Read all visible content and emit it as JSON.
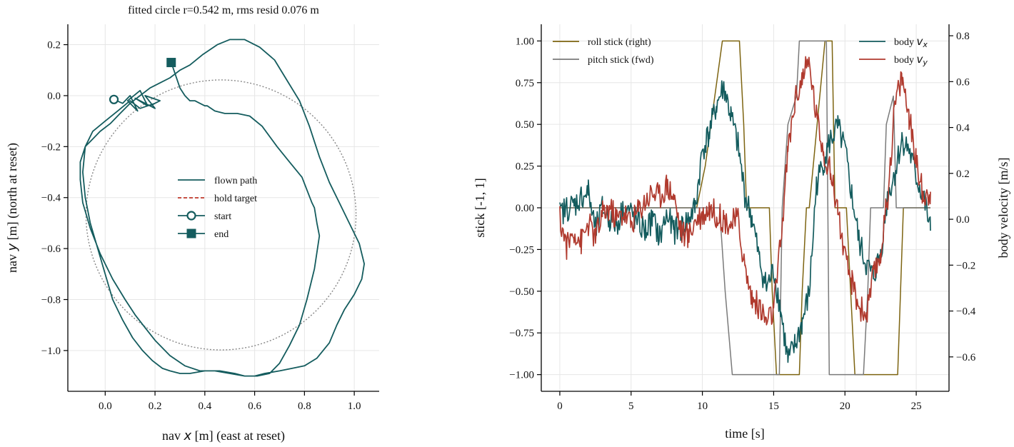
{
  "chart_data": [
    {
      "type": "line",
      "title": "fitted circle r=0.542 m, rms resid 0.076 m",
      "xlabel_parts": [
        "nav ",
        "x",
        " [m]  (east at reset)"
      ],
      "ylabel_parts": [
        "nav ",
        "y",
        " [m]  (north at reset)"
      ],
      "xlim": [
        -0.15,
        1.1
      ],
      "ylim": [
        -1.16,
        0.28
      ],
      "xticks": [
        0.0,
        0.2,
        0.4,
        0.6,
        0.8,
        1.0
      ],
      "xtick_labels": [
        "0.0",
        "0.2",
        "0.4",
        "0.6",
        "0.8",
        "1.0"
      ],
      "yticks": [
        0.2,
        0.0,
        -0.2,
        -0.4,
        -0.6,
        -0.8,
        -1.0
      ],
      "ytick_labels": [
        "0.2",
        "0.0",
        "−0.2",
        "−0.4",
        "−0.6",
        "−0.8",
        "−1.0"
      ],
      "grid": true,
      "legend_position": "center",
      "legend": [
        {
          "label": "flown path",
          "style": "solid",
          "color": "#145c5e"
        },
        {
          "label": "hold target",
          "style": "dashed",
          "color": "#c0392b"
        },
        {
          "label": "start",
          "style": "marker-open-circle",
          "color": "#145c5e"
        },
        {
          "label": "end",
          "style": "marker-square",
          "color": "#145c5e"
        }
      ],
      "fitted_circle": {
        "center_x": 0.465,
        "center_y": -0.468,
        "radius": 0.542,
        "color": "#888888"
      },
      "start_point": {
        "x": 0.035,
        "y": -0.015
      },
      "end_point": {
        "x": 0.265,
        "y": 0.13
      },
      "path": {
        "x": [
          0.035,
          0.07,
          0.1,
          0.13,
          0.09,
          0.14,
          0.17,
          0.12,
          0.2,
          0.16,
          0.22,
          0.18,
          0.2,
          0.14,
          0.1,
          0.05,
          0.0,
          -0.05,
          -0.08,
          -0.09,
          -0.08,
          -0.06,
          -0.03,
          0.0,
          0.03,
          0.07,
          0.11,
          0.15,
          0.19,
          0.23,
          0.26,
          0.3,
          0.34,
          0.4,
          0.46,
          0.52,
          0.56,
          0.6,
          0.64,
          0.7,
          0.75,
          0.8,
          0.85,
          0.9,
          0.93,
          0.96,
          1.0,
          1.03,
          1.04,
          1.02,
          0.98,
          0.94,
          0.9,
          0.86,
          0.82,
          0.78,
          0.73,
          0.68,
          0.62,
          0.56,
          0.5,
          0.45,
          0.39,
          0.34,
          0.3,
          0.26,
          0.22,
          0.18,
          0.14,
          0.1,
          0.06,
          0.02,
          -0.02,
          -0.05,
          -0.08,
          -0.1,
          -0.1,
          -0.09,
          -0.06,
          -0.02,
          0.03,
          0.08,
          0.12,
          0.16,
          0.2,
          0.26,
          0.32,
          0.38,
          0.44,
          0.5,
          0.56,
          0.61,
          0.66,
          0.7,
          0.74,
          0.78,
          0.81,
          0.84,
          0.86,
          0.85,
          0.84,
          0.83,
          0.79,
          0.74,
          0.69,
          0.63,
          0.58,
          0.53,
          0.48,
          0.44,
          0.41,
          0.4,
          0.38,
          0.36,
          0.34,
          0.32,
          0.3,
          0.265
        ],
        "y": [
          -0.015,
          -0.03,
          0.0,
          -0.06,
          -0.02,
          0.02,
          -0.04,
          -0.01,
          -0.05,
          0.0,
          -0.02,
          -0.04,
          -0.03,
          -0.05,
          -0.02,
          -0.06,
          -0.1,
          -0.14,
          -0.2,
          -0.3,
          -0.4,
          -0.5,
          -0.6,
          -0.7,
          -0.8,
          -0.88,
          -0.95,
          -1.0,
          -1.04,
          -1.07,
          -1.08,
          -1.09,
          -1.09,
          -1.08,
          -1.08,
          -1.09,
          -1.1,
          -1.1,
          -1.09,
          -1.08,
          -1.07,
          -1.06,
          -1.03,
          -0.97,
          -0.9,
          -0.84,
          -0.78,
          -0.72,
          -0.66,
          -0.58,
          -0.5,
          -0.42,
          -0.34,
          -0.24,
          -0.12,
          -0.02,
          0.06,
          0.14,
          0.19,
          0.22,
          0.22,
          0.2,
          0.16,
          0.12,
          0.1,
          0.07,
          0.05,
          0.03,
          0.0,
          -0.03,
          -0.07,
          -0.11,
          -0.14,
          -0.17,
          -0.2,
          -0.26,
          -0.33,
          -0.42,
          -0.52,
          -0.62,
          -0.72,
          -0.8,
          -0.86,
          -0.91,
          -0.96,
          -1.02,
          -1.06,
          -1.08,
          -1.08,
          -1.09,
          -1.1,
          -1.1,
          -1.09,
          -1.05,
          -0.98,
          -0.9,
          -0.8,
          -0.68,
          -0.55,
          -0.5,
          -0.44,
          -0.42,
          -0.32,
          -0.26,
          -0.2,
          -0.12,
          -0.08,
          -0.07,
          -0.07,
          -0.06,
          -0.04,
          -0.04,
          -0.03,
          -0.02,
          -0.02,
          0.0,
          0.03,
          0.13
        ]
      }
    },
    {
      "type": "line",
      "title": "",
      "xlabel": "time [s]",
      "ylabel_left": "stick [-1, 1]",
      "ylabel_right": "body velocity [m/s]",
      "xlim": [
        -1.3,
        27.3
      ],
      "ylim_left": [
        -1.1,
        1.1
      ],
      "ylim_right": [
        -0.75,
        0.85
      ],
      "xticks": [
        0,
        5,
        10,
        15,
        20,
        25
      ],
      "xtick_labels": [
        "0",
        "5",
        "10",
        "15",
        "20",
        "25"
      ],
      "yticks_left": [
        1.0,
        0.75,
        0.5,
        0.25,
        0.0,
        -0.25,
        -0.5,
        -0.75,
        -1.0
      ],
      "ytick_labels_left": [
        "1.00",
        "0.75",
        "0.50",
        "0.25",
        "0.00",
        "−0.25",
        "−0.50",
        "−0.75",
        "−1.00"
      ],
      "yticks_right": [
        0.8,
        0.6,
        0.4,
        0.2,
        0.0,
        -0.2,
        -0.4,
        -0.6
      ],
      "ytick_labels_right": [
        "0.8",
        "0.6",
        "0.4",
        "0.2",
        "0.0",
        "−0.2",
        "−0.4",
        "−0.6"
      ],
      "grid": true,
      "legend_left_position": "top-left",
      "legend_right_position": "top-right",
      "series": [
        {
          "name": "roll stick (right)",
          "axis": "left",
          "color": "#7d6411",
          "x": [
            0,
            9.6,
            10.2,
            10.6,
            11.0,
            11.4,
            12.6,
            12.9,
            13.1,
            13.3,
            14.7,
            14.9,
            15.2,
            16.8,
            17.0,
            17.3,
            17.5,
            18.6,
            19.1,
            19.3,
            20.1,
            20.4,
            20.7,
            23.7,
            23.9,
            24.1,
            26
          ],
          "y": [
            0,
            0,
            0.25,
            0.5,
            0.75,
            1.0,
            1.0,
            0.5,
            0.0,
            0.0,
            0.0,
            -0.5,
            -1.0,
            -1.0,
            -0.5,
            0.0,
            0.0,
            1.0,
            1.0,
            0.0,
            0.0,
            -0.5,
            -1.0,
            -1.0,
            -0.5,
            0.0,
            0.0
          ]
        },
        {
          "name": "pitch stick (fwd)",
          "axis": "left",
          "color": "#7a7a7a",
          "x": [
            0,
            10.8,
            11.2,
            11.6,
            12.1,
            12.3,
            15.4,
            15.6,
            16.0,
            16.6,
            16.8,
            18.7,
            18.9,
            21.3,
            21.6,
            21.8,
            22.7,
            22.9,
            23.4,
            23.6,
            26
          ],
          "y": [
            0,
            0,
            0.0,
            -0.5,
            -1.0,
            -1.0,
            -1.0,
            0.0,
            0.5,
            0.67,
            1.0,
            1.0,
            -1.0,
            -1.0,
            -0.5,
            0.0,
            0.0,
            0.5,
            0.67,
            0.0,
            0.0
          ]
        },
        {
          "name": "body v_x",
          "label_parts": [
            "body ",
            "v",
            "x"
          ],
          "axis": "right",
          "color": "#145c5e",
          "x": [
            0,
            0.5,
            1,
            1.5,
            2,
            2.5,
            3,
            3.5,
            4,
            4.5,
            5,
            5.5,
            6,
            6.5,
            7,
            7.5,
            8,
            8.5,
            9,
            9.5,
            10,
            10.5,
            11,
            11.5,
            12,
            12.5,
            13,
            13.5,
            14,
            14.5,
            15,
            15.5,
            16,
            16.5,
            17,
            17.5,
            18,
            18.5,
            19,
            19.5,
            20,
            20.5,
            21,
            21.5,
            22,
            22.5,
            23,
            23.5,
            24,
            24.5,
            25,
            25.5,
            26
          ],
          "y": [
            0.02,
            0.05,
            0.06,
            0.1,
            0.12,
            -0.05,
            0.05,
            0.0,
            -0.02,
            0.05,
            0.03,
            -0.02,
            -0.05,
            0.0,
            -0.08,
            0.02,
            -0.05,
            -0.04,
            0.0,
            0.05,
            0.3,
            0.38,
            0.5,
            0.58,
            0.45,
            0.32,
            0.1,
            0.0,
            -0.18,
            -0.3,
            -0.22,
            -0.4,
            -0.62,
            -0.55,
            -0.45,
            -0.32,
            0.15,
            0.25,
            0.35,
            0.4,
            0.3,
            0.1,
            -0.1,
            -0.2,
            -0.25,
            -0.15,
            0.1,
            0.2,
            0.35,
            0.3,
            0.18,
            0.1,
            -0.05
          ]
        },
        {
          "name": "body v_y",
          "label_parts": [
            "body ",
            "v",
            "y"
          ],
          "axis": "right",
          "color": "#b03a2e",
          "x": [
            0,
            0.5,
            1,
            1.5,
            2,
            2.5,
            3,
            3.5,
            4,
            4.5,
            5,
            5.5,
            6,
            6.5,
            7,
            7.5,
            8,
            8.5,
            9,
            9.5,
            10,
            10.5,
            11,
            11.5,
            12,
            12.5,
            13,
            13.5,
            14,
            14.5,
            15,
            15.5,
            16,
            16.5,
            17,
            17.5,
            18,
            18.5,
            19,
            19.5,
            20,
            20.5,
            21,
            21.5,
            22,
            22.5,
            23,
            23.5,
            24,
            24.5,
            25,
            25.5,
            26
          ],
          "y": [
            0.0,
            -0.12,
            -0.05,
            -0.1,
            -0.02,
            -0.08,
            0.02,
            0.05,
            0.0,
            0.03,
            -0.02,
            0.04,
            0.08,
            0.12,
            0.1,
            0.15,
            0.1,
            -0.05,
            -0.08,
            0.0,
            0.02,
            0.05,
            0.02,
            0.0,
            -0.02,
            0.0,
            -0.22,
            -0.35,
            -0.38,
            -0.45,
            -0.4,
            -0.1,
            0.3,
            0.52,
            0.62,
            0.68,
            0.45,
            0.3,
            0.2,
            0.05,
            -0.18,
            -0.28,
            -0.38,
            -0.42,
            -0.25,
            -0.15,
            0.1,
            0.5,
            0.62,
            0.45,
            0.25,
            0.1,
            0.12
          ]
        }
      ]
    }
  ]
}
